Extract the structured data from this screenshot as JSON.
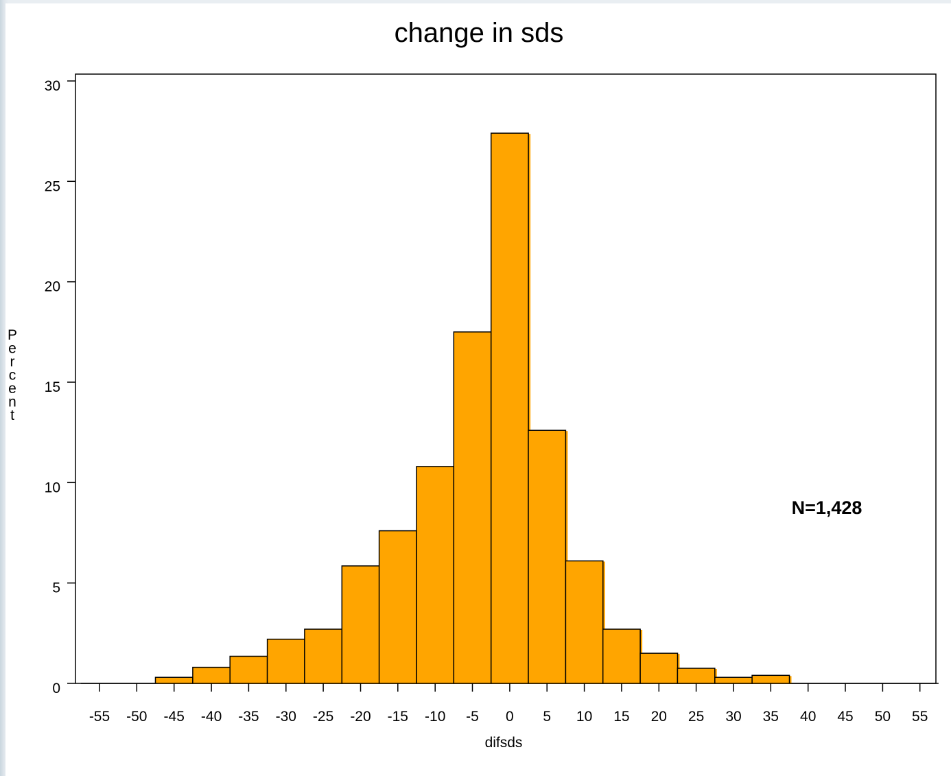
{
  "chart_data": {
    "type": "bar",
    "title": "change in sds",
    "xlabel": "difsds",
    "ylabel": "Percent",
    "annotation": "N=1,428",
    "categories": [
      "-55",
      "-50",
      "-45",
      "-40",
      "-35",
      "-30",
      "-25",
      "-20",
      "-15",
      "-10",
      "-5",
      "0",
      "5",
      "10",
      "15",
      "20",
      "25",
      "30",
      "35",
      "40",
      "45",
      "50",
      "55"
    ],
    "values": [
      0,
      0,
      0.3,
      0.8,
      1.35,
      2.2,
      2.7,
      5.85,
      7.6,
      10.8,
      17.5,
      27.4,
      12.6,
      6.1,
      2.7,
      1.5,
      0.75,
      0.3,
      0.4,
      0,
      0,
      0,
      0
    ],
    "yticks": [
      0,
      5,
      10,
      15,
      20,
      25,
      30
    ],
    "ylim": [
      0,
      30
    ],
    "grid": false,
    "bar_color": "#FFA500",
    "edge_color": "#000000"
  }
}
